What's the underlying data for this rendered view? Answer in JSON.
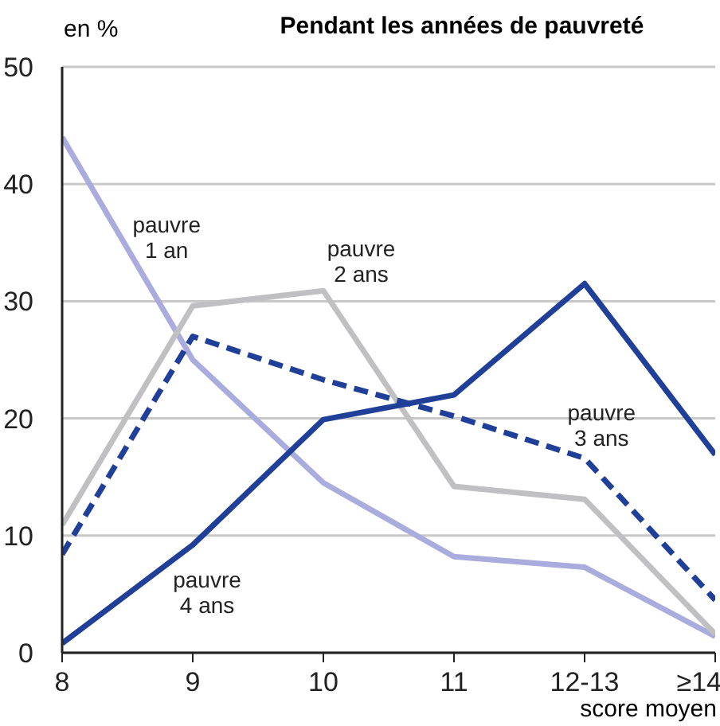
{
  "chart_data": {
    "type": "line",
    "title": "Pendant les années de pauvreté",
    "ylabel": "en %",
    "xlabel": "score moyen",
    "categories": [
      "8",
      "9",
      "10",
      "11",
      "12-13",
      "≥14"
    ],
    "ylim": [
      0,
      50
    ],
    "yticks": [
      0,
      10,
      20,
      30,
      40,
      50
    ],
    "grid": "y",
    "marker": "none",
    "series": [
      {
        "name": "pauvre 1 an",
        "color": "#a9acdc",
        "line_style": "solid",
        "values": [
          44,
          25,
          14.5,
          8.2,
          7.3,
          1.4
        ]
      },
      {
        "name": "pauvre 2 ans",
        "color": "#c0c0c2",
        "line_style": "solid",
        "values": [
          10.9,
          29.6,
          30.9,
          14.2,
          13.1,
          1.6
        ]
      },
      {
        "name": "pauvre 3 ans",
        "color": "#1f3f99",
        "line_style": "dashed",
        "values": [
          8.4,
          27,
          23.3,
          20.2,
          16.6,
          4.5
        ]
      },
      {
        "name": "pauvre 4 ans",
        "color": "#1f3f99",
        "line_style": "solid",
        "values": [
          0.8,
          9.2,
          19.9,
          22,
          31.5,
          16.9
        ]
      }
    ]
  }
}
